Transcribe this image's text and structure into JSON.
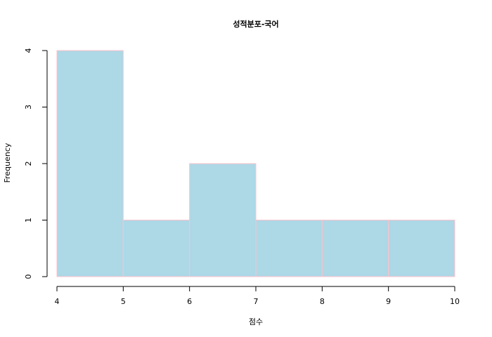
{
  "chart_data": {
    "type": "bar",
    "subtype": "histogram",
    "title": "성적분포-국어",
    "xlabel": "점수",
    "ylabel": "Frequency",
    "bins": [
      {
        "from": 4,
        "to": 5,
        "count": 4
      },
      {
        "from": 5,
        "to": 6,
        "count": 1
      },
      {
        "from": 6,
        "to": 7,
        "count": 2
      },
      {
        "from": 7,
        "to": 8,
        "count": 1
      },
      {
        "from": 8,
        "to": 9,
        "count": 1
      },
      {
        "from": 9,
        "to": 10,
        "count": 1
      }
    ],
    "xlim": [
      4,
      10
    ],
    "ylim": [
      0,
      4
    ],
    "x_ticks": [
      4,
      5,
      6,
      7,
      8,
      9,
      10
    ],
    "y_ticks": [
      0,
      1,
      2,
      3,
      4
    ],
    "grid": false,
    "colors": {
      "bar_fill": "#add8e6",
      "bar_border": "#ffc0cb",
      "axis": "#000000"
    }
  }
}
